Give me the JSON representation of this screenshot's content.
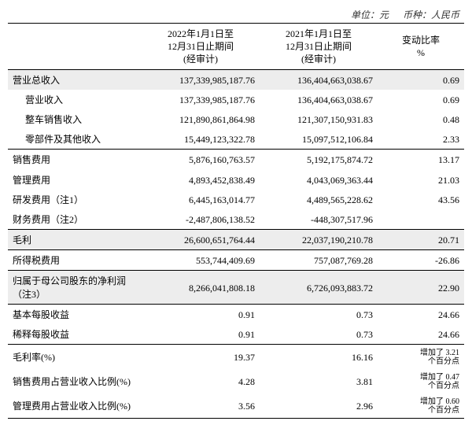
{
  "meta": {
    "unit_label": "单位：元",
    "currency_label": "币种：人民币"
  },
  "headers": {
    "col_period_2022": "2022年1月1日至\n12月31日止期间\n(经审计)",
    "col_period_2021": "2021年1月1日至\n12月31日止期间\n(经审计)",
    "col_change": "变动比率\n%"
  },
  "rows": [
    {
      "label": "营业总收入",
      "v1": "137,339,985,187.76",
      "v2": "136,404,663,038.67",
      "chg": "0.69",
      "shade": true,
      "section": true
    },
    {
      "label": "营业收入",
      "v1": "137,339,985,187.76",
      "v2": "136,404,663,038.67",
      "chg": "0.69",
      "indent": true
    },
    {
      "label": "整车销售收入",
      "v1": "121,890,861,864.98",
      "v2": "121,307,150,931.83",
      "chg": "0.48",
      "indent": true
    },
    {
      "label": "零部件及其他收入",
      "v1": "15,449,123,322.78",
      "v2": "15,097,512,106.84",
      "chg": "2.33",
      "indent": true
    },
    {
      "label": "销售费用",
      "v1": "5,876,160,763.57",
      "v2": "5,192,175,874.72",
      "chg": "13.17",
      "section": true
    },
    {
      "label": "管理费用",
      "v1": "4,893,452,838.49",
      "v2": "4,043,069,363.44",
      "chg": "21.03"
    },
    {
      "label": "研发费用（注1）",
      "v1": "6,445,163,014.77",
      "v2": "4,489,565,228.62",
      "chg": "43.56"
    },
    {
      "label": "财务费用（注2）",
      "v1": "-2,487,806,138.52",
      "v2": "-448,307,517.96",
      "chg": ""
    },
    {
      "label": "毛利",
      "v1": "26,600,651,764.44",
      "v2": "22,037,190,210.78",
      "chg": "20.71",
      "shade": true,
      "section": true
    },
    {
      "label": "所得税费用",
      "v1": "553,744,409.69",
      "v2": "757,087,769.28",
      "chg": "-26.86",
      "section": true
    },
    {
      "label": "归属于母公司股东的净利润\n（注3）",
      "v1": "8,266,041,808.18",
      "v2": "6,726,093,883.72",
      "chg": "22.90",
      "shade": true,
      "section": true
    },
    {
      "label": "基本每股收益",
      "v1": "0.91",
      "v2": "0.73",
      "chg": "24.66",
      "section": true
    },
    {
      "label": "稀释每股收益",
      "v1": "0.91",
      "v2": "0.73",
      "chg": "24.66"
    },
    {
      "label": "毛利率(%)",
      "v1": "19.37",
      "v2": "16.16",
      "chg_sup": "增加了 3.21",
      "chg_sub": "个百分点",
      "section": true
    },
    {
      "label": "销售费用占营业收入比例(%)",
      "v1": "4.28",
      "v2": "3.81",
      "chg_sup": "增加了 0.47",
      "chg_sub": "个百分点"
    },
    {
      "label": "管理费用占营业收入比例(%)",
      "v1": "3.56",
      "v2": "2.96",
      "chg_sup": "增加了 0.60",
      "chg_sub": "个百分点",
      "last": true
    }
  ]
}
